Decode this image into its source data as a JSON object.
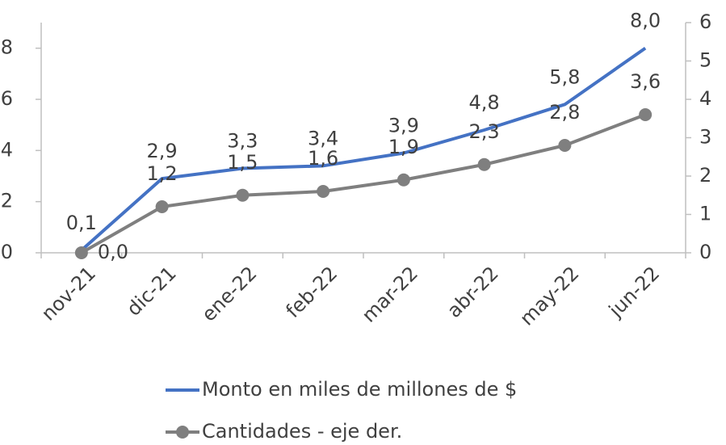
{
  "chart_data": {
    "type": "line",
    "categories": [
      "nov-21",
      "dic-21",
      "ene-22",
      "feb-22",
      "mar-22",
      "abr-22",
      "may-22",
      "jun-22"
    ],
    "series": [
      {
        "name": "Monto en miles de millones de $",
        "color": "#4472c4",
        "values": [
          0.1,
          2.9,
          3.3,
          3.4,
          3.9,
          4.8,
          5.8,
          8.0
        ],
        "value_labels": [
          "0,1",
          "2,9",
          "3,3",
          "3,4",
          "3,9",
          "4,8",
          "5,8",
          "8,0"
        ]
      },
      {
        "name": "Cantidades - eje der.",
        "color": "#7f7f7f",
        "axis": "y2",
        "marker": "circle",
        "values": [
          0.0,
          1.2,
          1.5,
          1.6,
          1.9,
          2.3,
          2.8,
          3.6
        ],
        "value_labels": [
          "0,0",
          "1,2",
          "1,5",
          "1,6",
          "1,9",
          "2,3",
          "2,8",
          "3,6"
        ]
      }
    ],
    "ylim": [
      0,
      9
    ],
    "yticks": [
      0,
      2,
      4,
      6,
      8
    ],
    "y2lim": [
      0,
      6
    ],
    "y2ticks": [
      0,
      1,
      2,
      3,
      4,
      5,
      6
    ],
    "legend": "bottom"
  }
}
